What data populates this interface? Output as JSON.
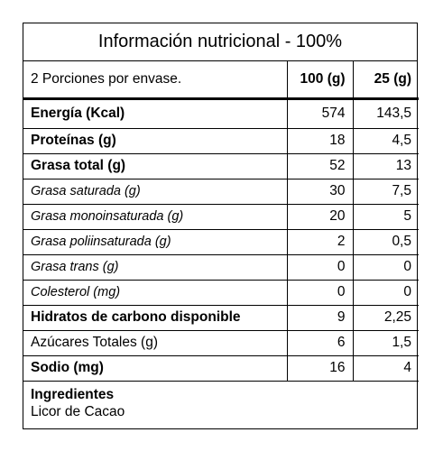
{
  "title": "Información nutricional - 100%",
  "header": {
    "label": "2 Porciones por envase.",
    "col1": "100 (g)",
    "col2": "25 (g)"
  },
  "rows": [
    {
      "label": "Energía (Kcal)",
      "v1": "574",
      "v2": "143,5",
      "style": "bold"
    },
    {
      "label": "Proteínas (g)",
      "v1": "18",
      "v2": "4,5",
      "style": "bold"
    },
    {
      "label": "Grasa total (g)",
      "v1": "52",
      "v2": "13",
      "style": "bold"
    },
    {
      "label": "Grasa saturada (g)",
      "v1": "30",
      "v2": "7,5",
      "style": "italic"
    },
    {
      "label": "Grasa monoinsaturada (g)",
      "v1": "20",
      "v2": "5",
      "style": "italic"
    },
    {
      "label": "Grasa poliinsaturada (g)",
      "v1": "2",
      "v2": "0,5",
      "style": "italic"
    },
    {
      "label": "Grasa trans (g)",
      "v1": "0",
      "v2": "0",
      "style": "italic"
    },
    {
      "label": "Colesterol (mg)",
      "v1": "0",
      "v2": "0",
      "style": "italic"
    },
    {
      "label": "Hidratos de carbono disponible",
      "v1": "9",
      "v2": "2,25",
      "style": "bold"
    },
    {
      "label": "Azúcares Totales (g)",
      "v1": "6",
      "v2": "1,5",
      "style": "normal"
    },
    {
      "label": "Sodio (mg)",
      "v1": "16",
      "v2": "4",
      "style": "bold"
    }
  ],
  "ingredients": {
    "title": "Ingredientes",
    "text": "Licor de Cacao"
  }
}
